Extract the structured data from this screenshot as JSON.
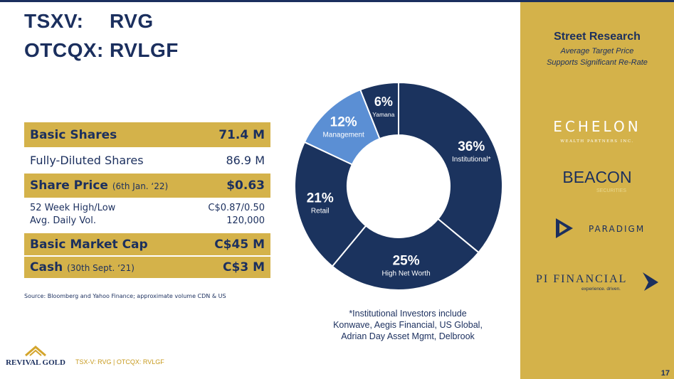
{
  "header": {
    "exchange1": "TSXV:",
    "symbol1": "RVG",
    "exchange2": "OTCQX:",
    "symbol2": "RVLGF"
  },
  "metrics": {
    "basic_shares": {
      "label": "Basic Shares",
      "value": "71.4 M"
    },
    "fully_diluted": {
      "label": "Fully-Diluted Shares",
      "value": "86.9 M"
    },
    "share_price": {
      "label": "Share Price",
      "note": "(6th Jan. ‘22)",
      "value": "$0.63"
    },
    "week52": {
      "label": "52 Week High/Low",
      "value": "C$0.87/0.50"
    },
    "avg_vol": {
      "label": "Avg. Daily Vol.",
      "value": "120,000"
    },
    "market_cap": {
      "label": "Basic Market Cap",
      "value": "C$45 M"
    },
    "cash": {
      "label": "Cash",
      "note": "(30th Sept. ‘21)",
      "value": "C$3 M"
    }
  },
  "source": "Source: Bloomberg and Yahoo Finance; approximate volume CDN & US",
  "footer": {
    "logo_text": "REVIVAL GOLD",
    "tickers": "TSX-V: RVG | OTCQX: RVLGF"
  },
  "chart_data": {
    "type": "pie",
    "title": "",
    "slices": [
      {
        "label": "Institutional*",
        "pct": "36%",
        "value": 36,
        "color": "#1b335e"
      },
      {
        "label": "High Net Worth",
        "pct": "25%",
        "value": 25,
        "color": "#1b335e"
      },
      {
        "label": "Retail",
        "pct": "21%",
        "value": 21,
        "color": "#1b335e"
      },
      {
        "label": "Management",
        "pct": "12%",
        "value": 12,
        "color": "#5b8fd4"
      },
      {
        "label": "Yamana",
        "pct": "6%",
        "value": 6,
        "color": "#1b335e"
      }
    ]
  },
  "institutional_note": {
    "line1": "*Institutional Investors include",
    "line2": "Konwave, Aegis Financial, US Global,",
    "line3": "Adrian Day Asset Mgmt, Delbrook"
  },
  "sidebar": {
    "heading": "Street Research",
    "sub1": "Average Target Price",
    "sub2": "Supports Significant Re-Rate",
    "firms": [
      {
        "name": "ECHELON",
        "tag": "WEALTH PARTNERS INC."
      },
      {
        "name": "BEACON",
        "tag": "SECURITIES"
      },
      {
        "name": "PARADIGM"
      },
      {
        "name": "PI FINANCIAL",
        "tag": "experience. driven."
      }
    ],
    "page_number": "17"
  }
}
